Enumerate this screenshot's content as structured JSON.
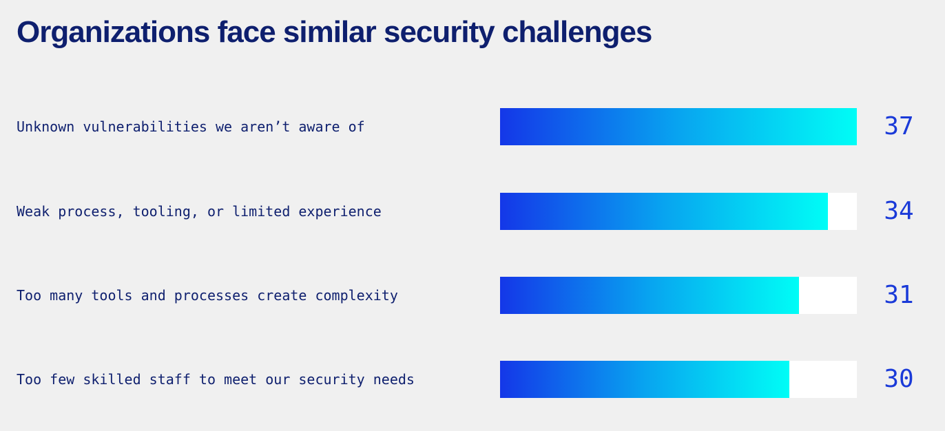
{
  "title": "Organizations face similar security challenges",
  "colors": {
    "title": "#0e1f6e",
    "label": "#0e1f6e",
    "value": "#1a3ad8",
    "track": "#ffffff",
    "gradient_start": "#1437e8",
    "gradient_end": "#00fdf6",
    "background": "#f0f0f0"
  },
  "chart_data": {
    "type": "bar",
    "orientation": "horizontal",
    "title": "Organizations face similar security challenges",
    "categories": [
      "Unknown vulnerabilities we aren’t aware of",
      "Weak process, tooling, or limited experience",
      "Too many tools and processes create complexity",
      "Too few skilled staff to meet our security needs"
    ],
    "values": [
      37,
      34,
      31,
      30
    ],
    "xlim": [
      0,
      37
    ],
    "grid": false,
    "data_labels": true
  }
}
